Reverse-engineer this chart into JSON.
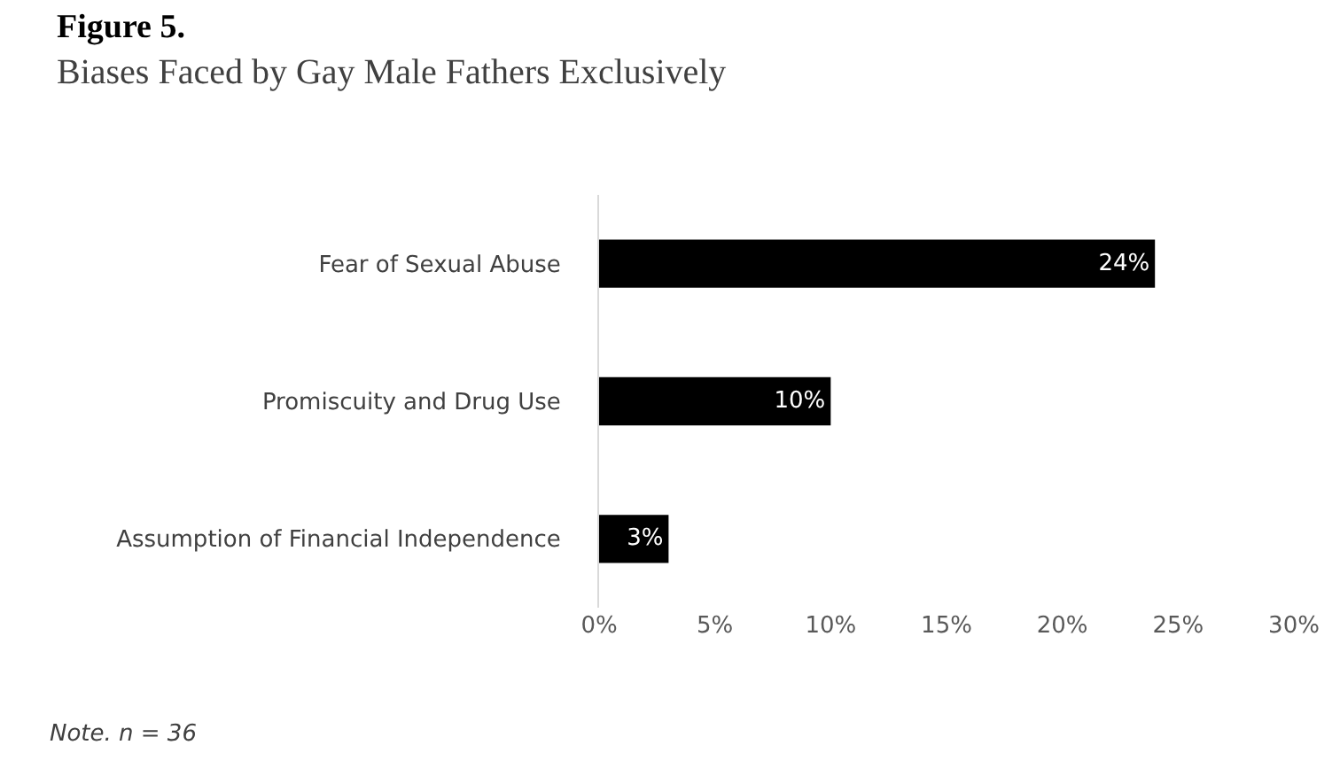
{
  "chart_data": {
    "type": "bar",
    "orientation": "horizontal",
    "title": "Figure 5.",
    "subtitle": "Biases Faced by Gay Male Fathers Exclusively",
    "categories": [
      "Fear of Sexual Abuse",
      "Promiscuity and Drug Use",
      "Assumption of Financial Independence"
    ],
    "values": [
      24,
      10,
      3
    ],
    "color": "#000000",
    "value_labels": [
      "24%",
      "10%",
      "3%"
    ],
    "xlim": [
      0,
      30
    ],
    "xticks": [
      {
        "value": 0,
        "label": "0%"
      },
      {
        "value": 5,
        "label": "5%"
      },
      {
        "value": 10,
        "label": "10%"
      },
      {
        "value": 15,
        "label": "15%"
      },
      {
        "value": 20,
        "label": "20%"
      },
      {
        "value": 25,
        "label": "25%"
      },
      {
        "value": 30,
        "label": "30%"
      }
    ],
    "annotations": [
      "Note. n = 36"
    ]
  }
}
